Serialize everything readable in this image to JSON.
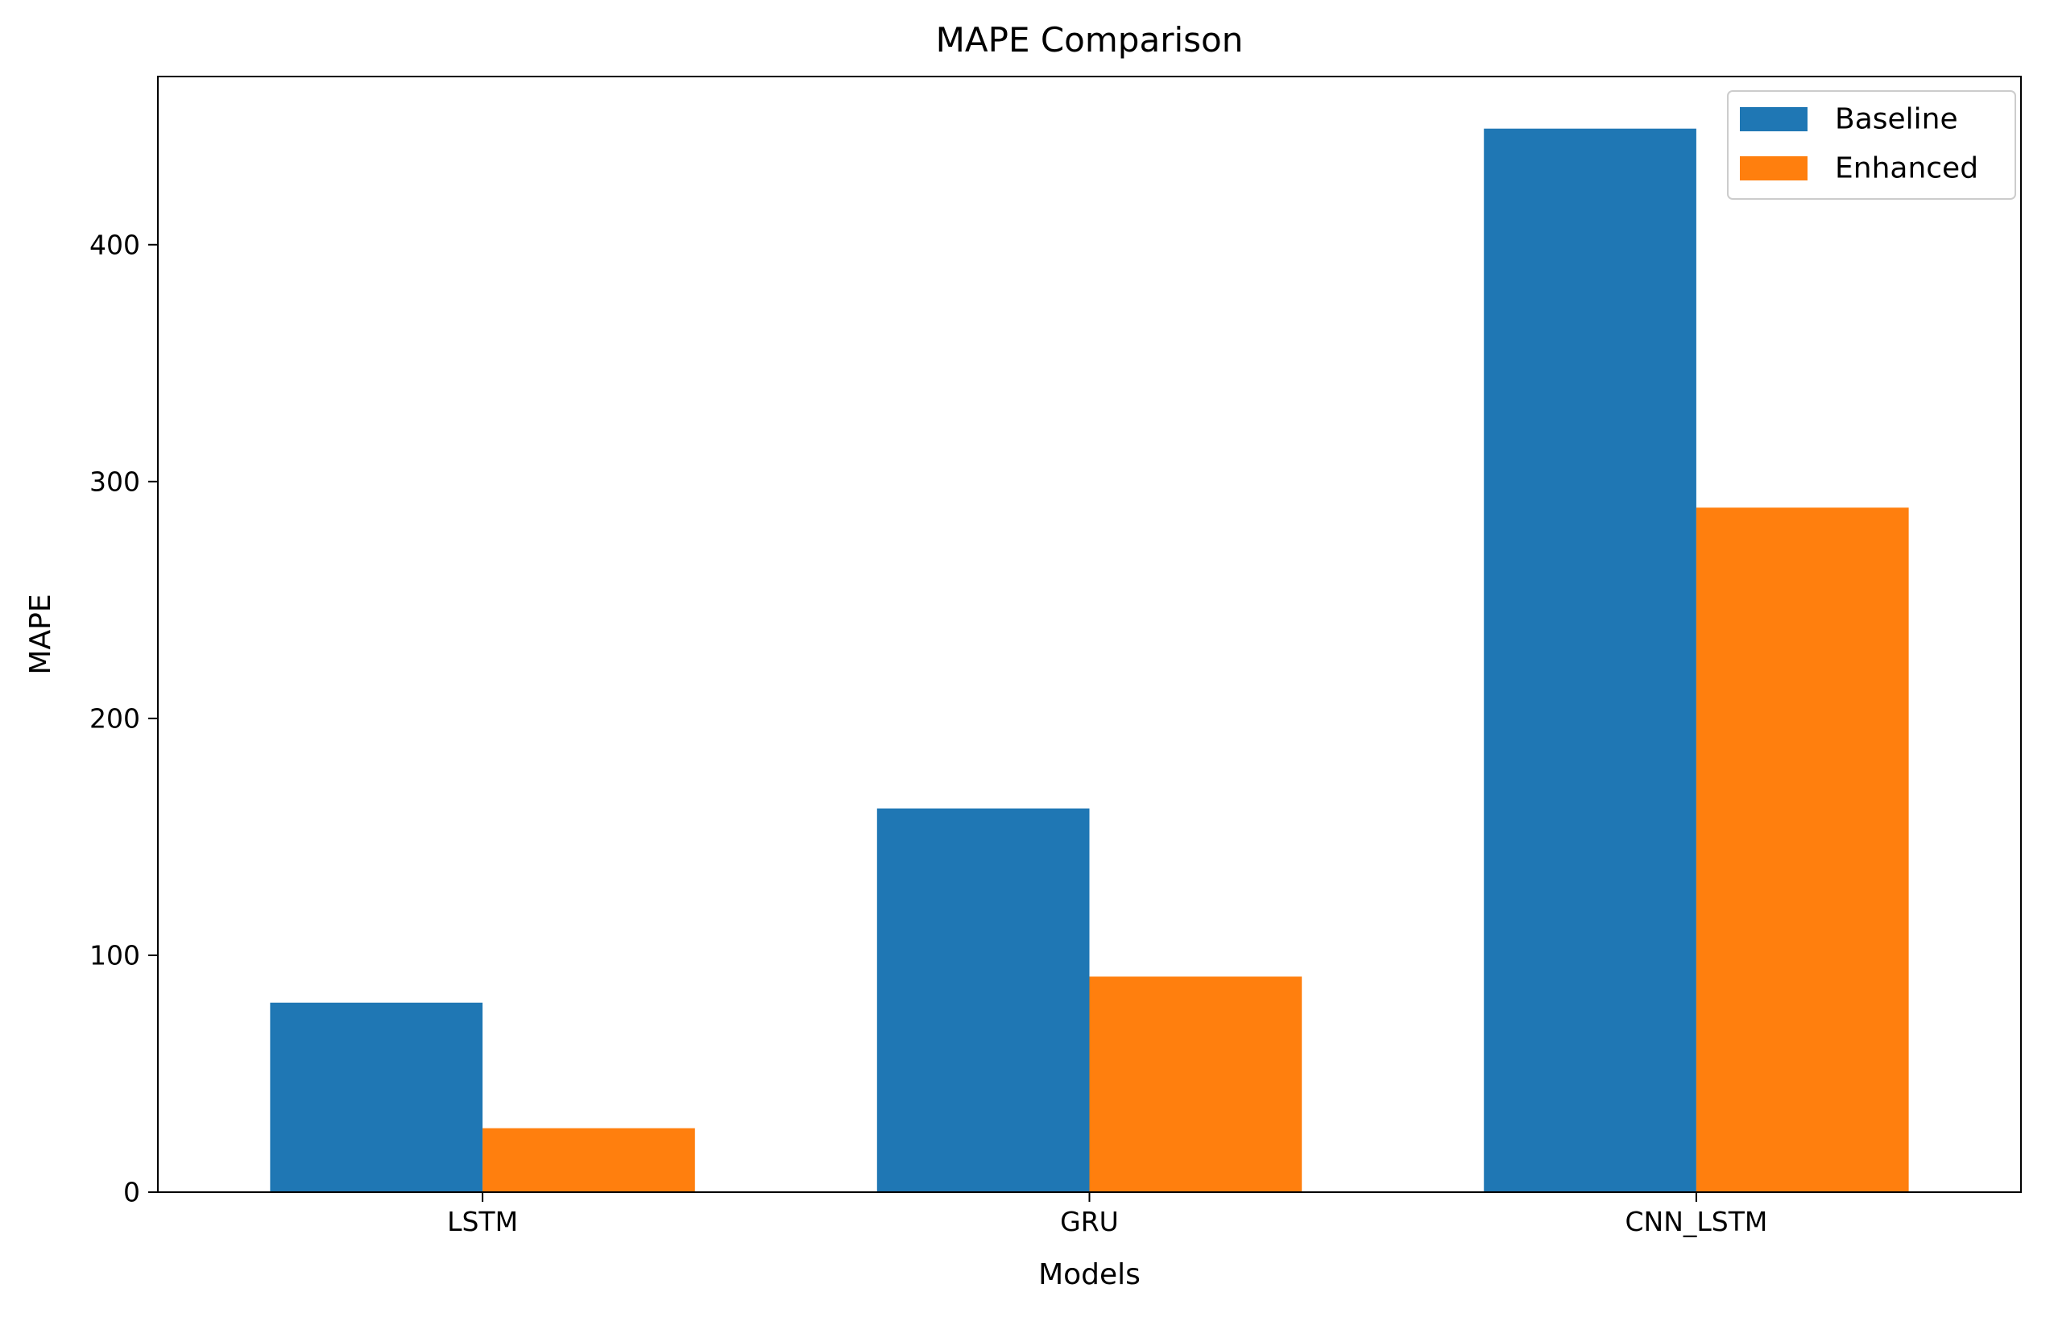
{
  "chart_data": {
    "type": "bar",
    "title": "MAPE Comparison",
    "xlabel": "Models",
    "ylabel": "MAPE",
    "categories": [
      "LSTM",
      "GRU",
      "CNN_LSTM"
    ],
    "series": [
      {
        "name": "Baseline",
        "color": "#1f77b4",
        "values": [
          80,
          162,
          449
        ]
      },
      {
        "name": "Enhanced",
        "color": "#ff7f0e",
        "values": [
          27,
          91,
          289
        ]
      }
    ],
    "ylim": [
      0,
      471
    ],
    "yticks": [
      0,
      100,
      200,
      300,
      400
    ],
    "legend_position": "top-right",
    "grid": false
  }
}
